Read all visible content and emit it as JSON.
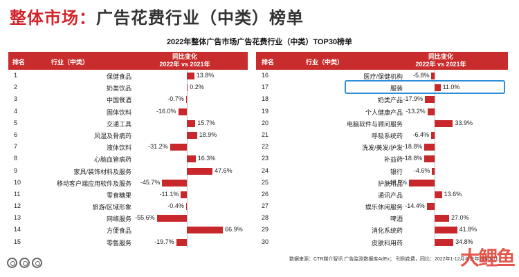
{
  "header": {
    "title_accent": "整体市场：",
    "title_rest": "广告花费行业（中类）榜单"
  },
  "chart_title": "2022年整体广告市场广告花费行业（中类）TOP30榜单",
  "table_header": {
    "rank": "排名",
    "industry": "行业（中类）",
    "change_line1": "同比变化",
    "change_line2": "2022年 vs 2021年"
  },
  "colors": {
    "bar": "#c8282c",
    "header_bg": "#c92c2c",
    "highlight": "#2a8fd6",
    "title_accent": "#d3242a"
  },
  "highlighted_rank": 17,
  "source_note": "数据来源：CTR媒介智讯 广告监测数据库AdEx；  刊例花费，同比：2022年1-12月与去年同期对比",
  "watermark": "大鲤鱼",
  "chart_data": {
    "type": "bar",
    "orientation": "horizontal",
    "unit": "%",
    "categories": [
      "保健食品",
      "奶类饮品",
      "中国餐酒",
      "固体饮料",
      "交通工具",
      "风湿及骨病药",
      "液体饮料",
      "心脑血管病药",
      "家具/装饰材料及服务",
      "移动客户端应用软件及服务",
      "零食糖果",
      "旅游/区域形象",
      "网络服务",
      "方便食品",
      "零售服务",
      "医疗/保健机构",
      "服装",
      "奶类产品",
      "个人健康产品",
      "电脑软件与顾问服务",
      "呼吸系统药",
      "洗发/美发/护发",
      "补益药",
      "银行",
      "护肤用品",
      "通讯产品",
      "娱乐休闲服务",
      "啤酒",
      "消化系统药",
      "皮肤科用药"
    ],
    "ranks": [
      1,
      2,
      3,
      4,
      5,
      6,
      7,
      8,
      9,
      10,
      11,
      12,
      13,
      14,
      15,
      16,
      17,
      18,
      19,
      20,
      21,
      22,
      23,
      24,
      25,
      26,
      27,
      28,
      29,
      30
    ],
    "values": [
      13.8,
      0.2,
      -0.7,
      -16.0,
      15.7,
      18.9,
      -31.2,
      16.3,
      47.6,
      -45.7,
      -11.1,
      -0.4,
      -55.6,
      66.9,
      -19.7,
      -5.8,
      11.0,
      -17.9,
      -13.2,
      33.9,
      -6.4,
      -18.8,
      -18.8,
      -4.6,
      -47.5,
      13.6,
      -14.4,
      27.0,
      41.8,
      34.8
    ],
    "labels": [
      "13.8%",
      "0.2%",
      "-0.7%",
      "-16.0%",
      "15.7%",
      "18.9%",
      "-31.2%",
      "16.3%",
      "47.6%",
      "-45.7%",
      "-11.1%",
      "-0.4%",
      "-55.6%",
      "66.9%",
      "-19.7%",
      "-5.8%",
      "11.0%",
      "-17.9%",
      "-13.2%",
      "33.9%",
      "-6.4%",
      "-18.8%",
      "-18.8%",
      "-4.6%",
      "-47.5%",
      "13.6%",
      "-14.4%",
      "27.0%",
      "41.8%",
      "34.8%"
    ]
  }
}
